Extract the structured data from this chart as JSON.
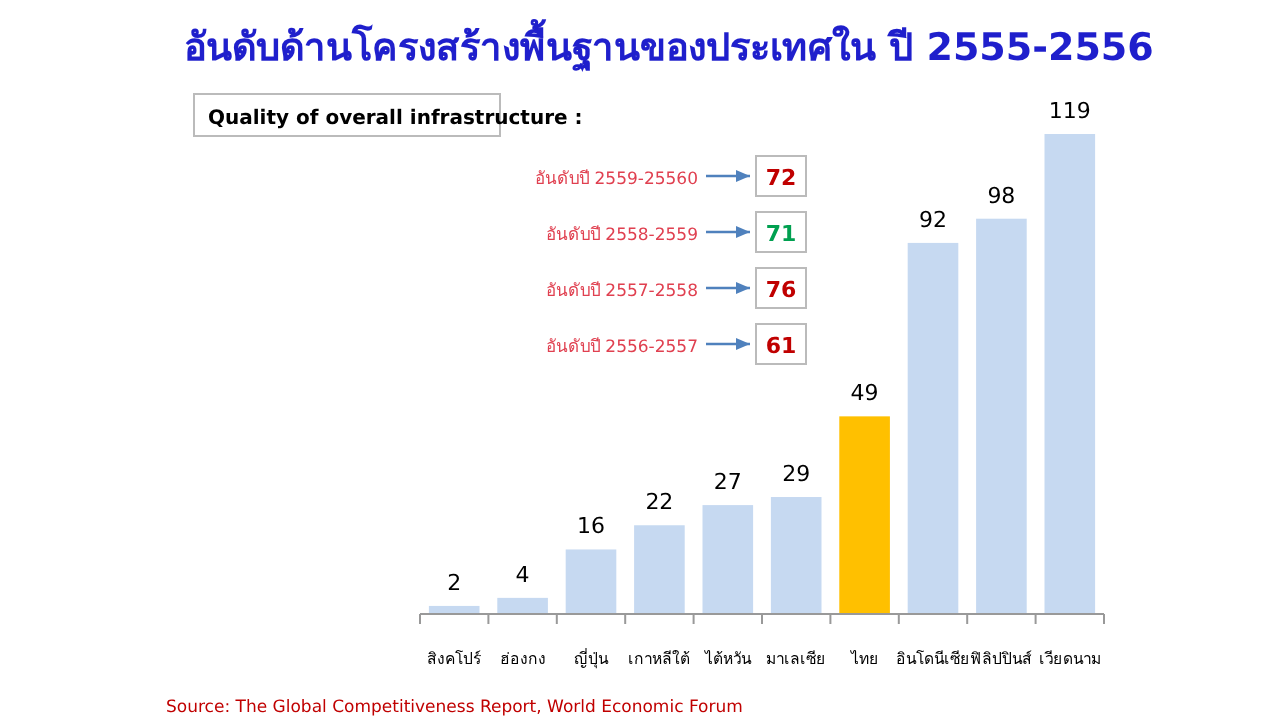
{
  "chart_data": {
    "type": "bar",
    "title": "อันดับด้านโครงสร้างพื้นฐานของประเทศใน ปี 2555-2556",
    "categories": [
      "สิงคโปร์",
      "ฮ่องกง",
      "ญี่ปุ่น",
      "เกาหลีใต้",
      "ไต้หวัน",
      "มาเลเซีย",
      "ไทย",
      "อินโดนีเซีย",
      "ฟิลิปปินส์",
      "เวียดนาม"
    ],
    "values": [
      2,
      4,
      16,
      22,
      27,
      29,
      49,
      92,
      98,
      119
    ],
    "colors": [
      "#c6d9f1",
      "#c6d9f1",
      "#c6d9f1",
      "#c6d9f1",
      "#c6d9f1",
      "#c6d9f1",
      "#ffc000",
      "#c6d9f1",
      "#c6d9f1",
      "#c6d9f1"
    ],
    "data_labels": true,
    "annotations": [
      "Quality of overall infrastructure :",
      "อันดับปี 2559-25560",
      "72",
      "อันดับปี 2558-2559",
      "71",
      "อันดับปี 2557-2558",
      "76",
      "อันดับปี 2556-2557",
      "61",
      "Source: The Global Competitiveness Report, World Economic Forum"
    ]
  }
}
